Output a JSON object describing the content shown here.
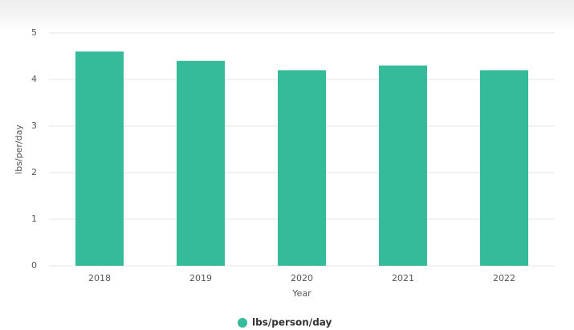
{
  "chart_data": {
    "type": "bar",
    "categories": [
      "2018",
      "2019",
      "2020",
      "2021",
      "2022"
    ],
    "series": [
      {
        "name": "lbs/person/day",
        "color": "#36bb9a",
        "values": [
          4.6,
          4.4,
          4.2,
          4.3,
          4.2
        ]
      }
    ],
    "x_label": "Year",
    "y_label": "lbs/per/day",
    "ylim": [
      0,
      5
    ],
    "yticks": [
      0,
      1,
      2,
      3,
      4,
      5
    ],
    "grid": true
  }
}
